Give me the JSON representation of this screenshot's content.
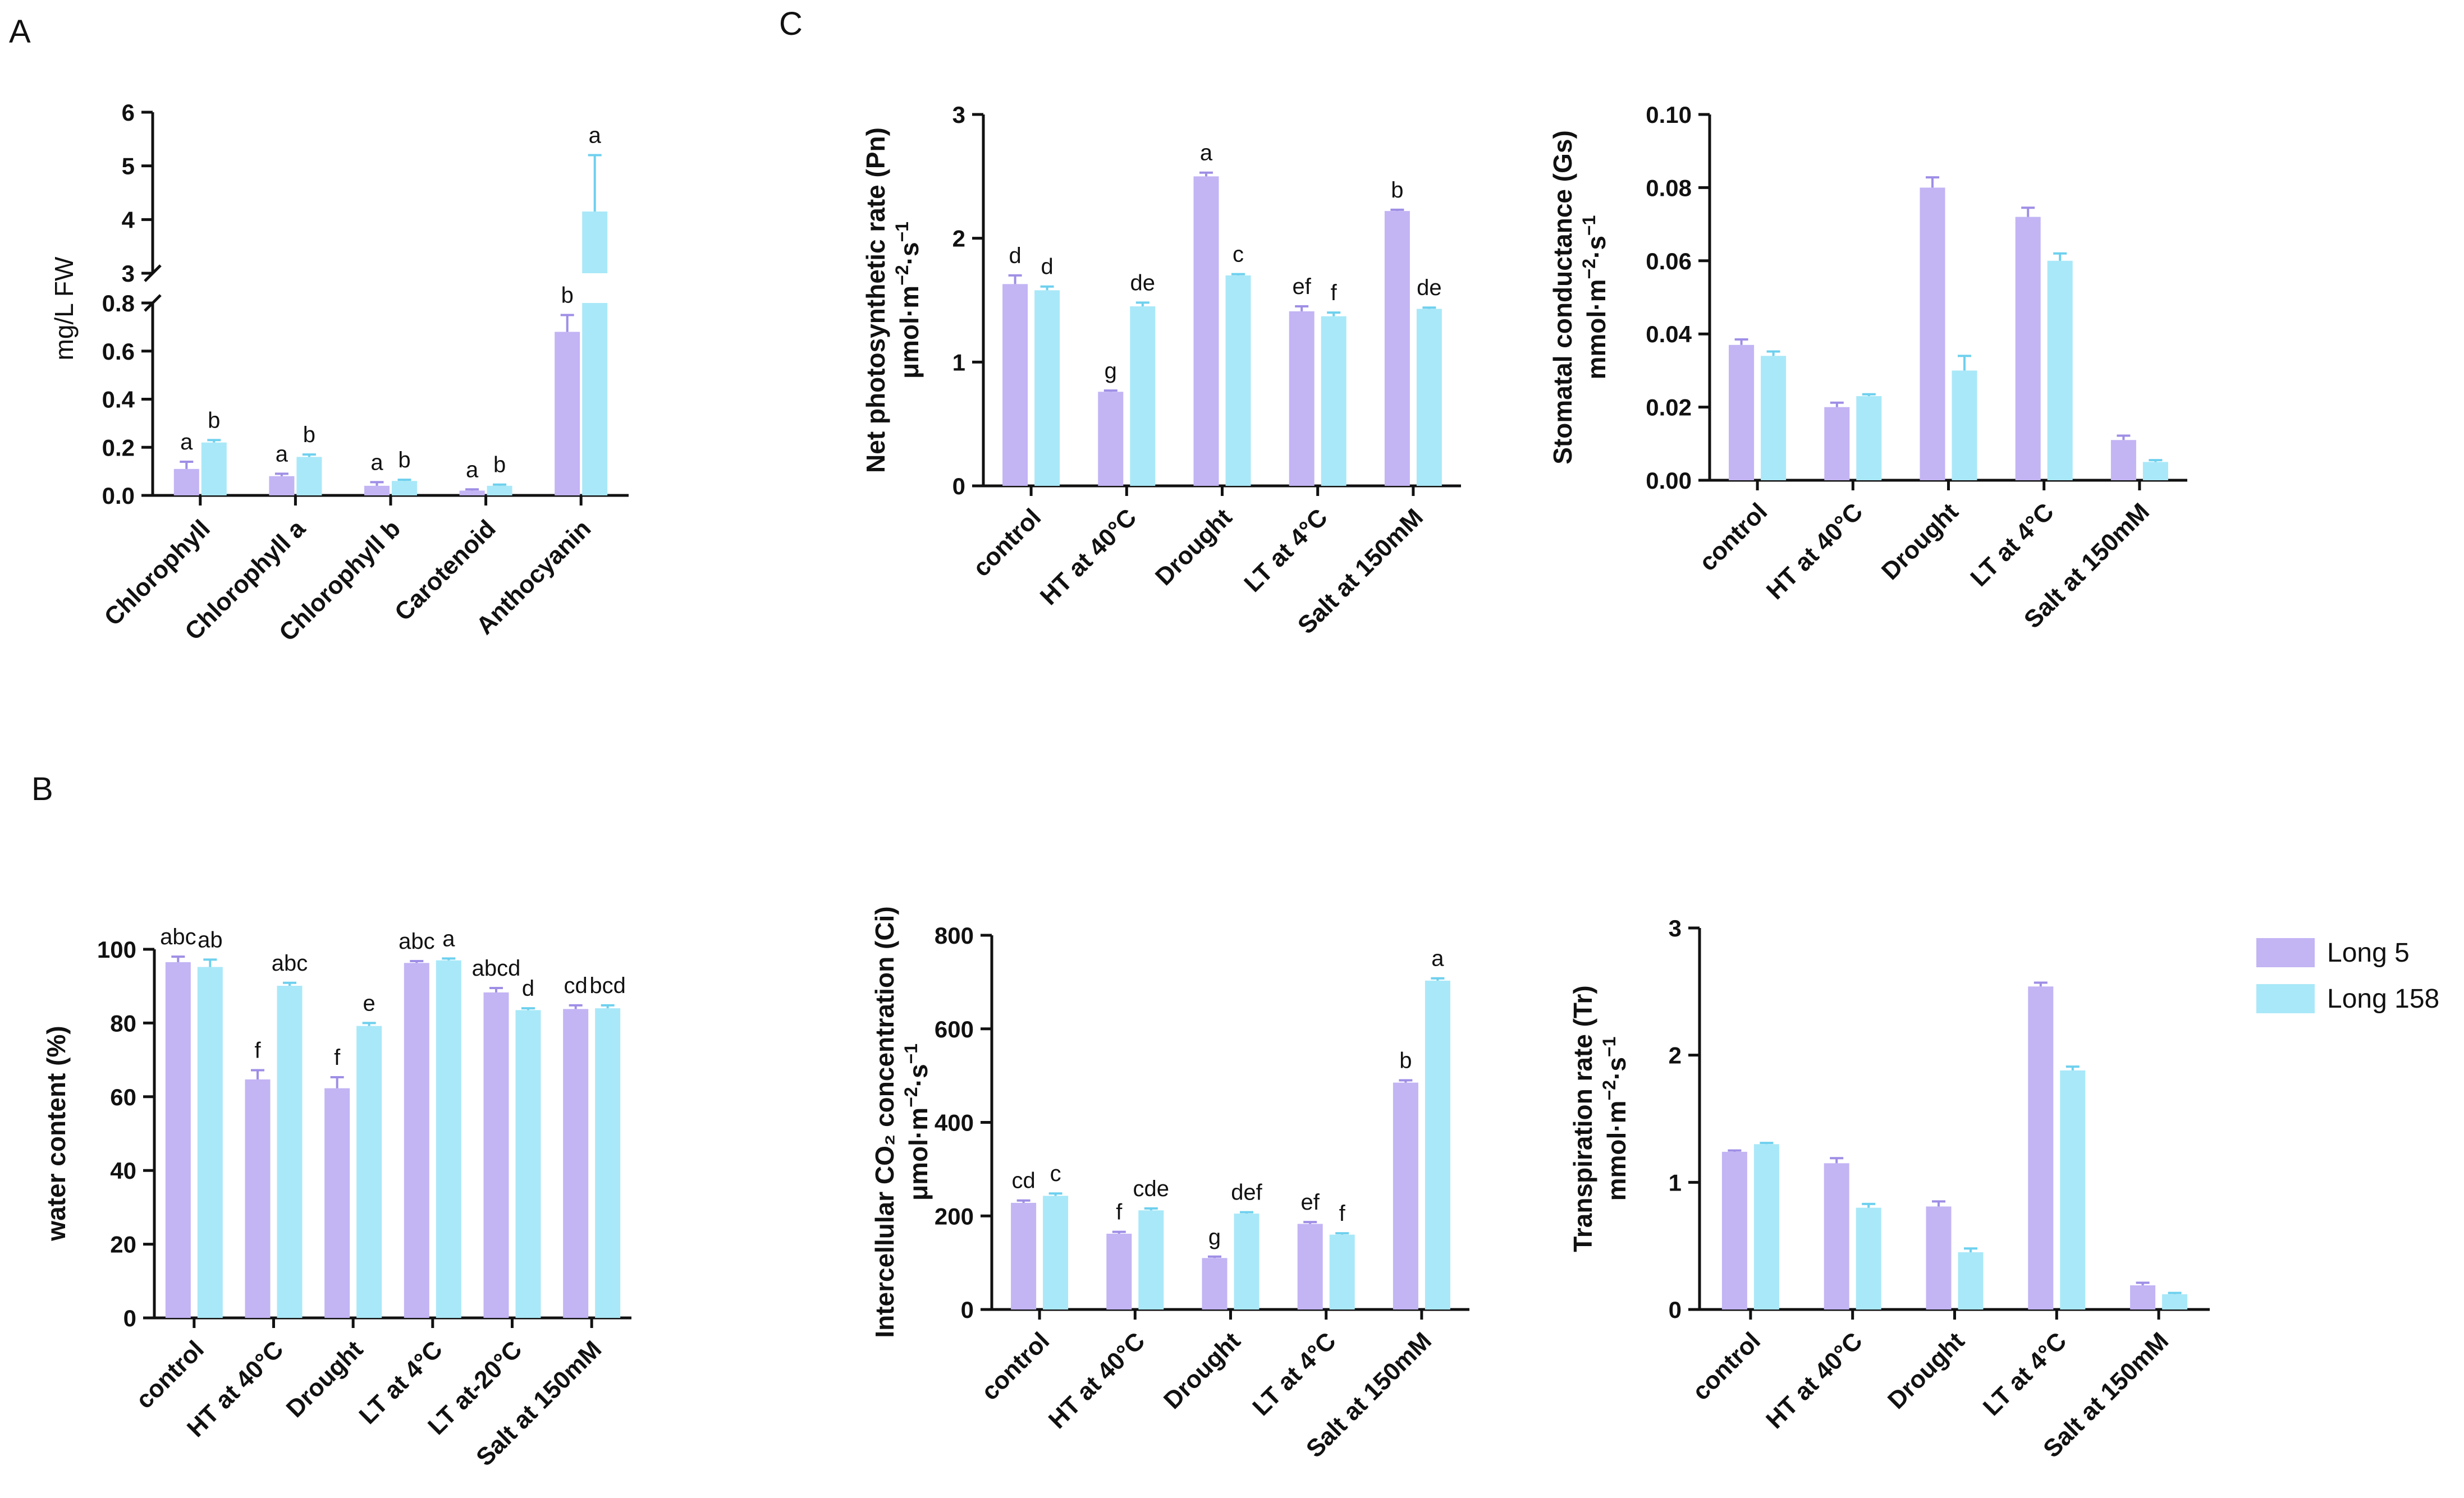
{
  "colors": {
    "long5": "#c3b4f4",
    "long158": "#a9e8f8",
    "long5_err": "#9f8ee6",
    "long158_err": "#6ed0ee",
    "axis": "#111111"
  },
  "panel_labels": {
    "a": "A",
    "b": "B",
    "c": "C"
  },
  "legend": [
    {
      "label": "Long 5",
      "series": 0
    },
    {
      "label": "Long 158",
      "series": 1
    }
  ],
  "chart_data": [
    {
      "id": "A",
      "type": "bar",
      "ylabel": "mg/L FW",
      "ylabel_bold": false,
      "categories": [
        "Chlorophyll",
        "Chlorophyll a",
        "Chlorophyll b",
        "Carotenoid",
        "Anthocyanin"
      ],
      "series": [
        {
          "name": "Long 5",
          "values": [
            0.11,
            0.08,
            0.04,
            0.02,
            0.68
          ],
          "errors": [
            0.03,
            0.01,
            0.015,
            0.005,
            0.07
          ],
          "letters": [
            "a",
            "a",
            "a",
            "a",
            "b"
          ]
        },
        {
          "name": "Long 158",
          "values": [
            0.22,
            0.16,
            0.06,
            0.04,
            4.15
          ],
          "errors": [
            0.01,
            0.01,
            0.005,
            0.005,
            1.05
          ],
          "letters": [
            "b",
            "b",
            "b",
            "b",
            "a"
          ]
        }
      ],
      "broken_axis": {
        "lower": [
          0,
          0.8
        ],
        "upper": [
          3,
          6
        ]
      },
      "yticks_lower": [
        "0.0",
        "0.2",
        "0.4",
        "0.6",
        "0.8"
      ],
      "yticks_upper": [
        "3",
        "4",
        "5",
        "6"
      ]
    },
    {
      "id": "B",
      "type": "bar",
      "ylabel": "water content  (%)",
      "categories": [
        "control",
        "HT at 40°C",
        "Drought",
        "LT at 4°C",
        "LT at-20°C",
        "Salt at 150mM"
      ],
      "ylim": [
        0,
        100
      ],
      "yticks": [
        "0",
        "20",
        "40",
        "60",
        "80",
        "100"
      ],
      "series": [
        {
          "name": "Long 5",
          "values": [
            96.5,
            64.7,
            62.3,
            96.3,
            88.3,
            83.8
          ],
          "errors": [
            1.5,
            2.5,
            3.0,
            0.5,
            1.2,
            1.0
          ],
          "letters": [
            "abc",
            "f",
            "f",
            "abc",
            "abcd",
            "cd"
          ]
        },
        {
          "name": "Long 158",
          "values": [
            95.2,
            90.1,
            79.2,
            97.0,
            83.5,
            84.0
          ],
          "errors": [
            2.0,
            0.8,
            0.8,
            0.5,
            0.5,
            0.8
          ],
          "letters": [
            "ab",
            "abc",
            "e",
            "a",
            "d",
            "bcd"
          ]
        }
      ]
    },
    {
      "id": "Pn",
      "type": "bar",
      "ylabel": "Net photosynthetic rate (Pn)",
      "ylabel_unit": [
        "μmol·m",
        "−2",
        "·s",
        "−1"
      ],
      "categories": [
        "control",
        "HT at 40°C",
        "Drought",
        "LT at 4°C",
        "Salt at 150mM"
      ],
      "ylim": [
        0,
        3
      ],
      "yticks": [
        "0",
        "1",
        "2",
        "3"
      ],
      "series": [
        {
          "name": "Long 5",
          "values": [
            1.63,
            0.76,
            2.5,
            1.41,
            2.22
          ],
          "errors": [
            0.07,
            0.01,
            0.03,
            0.04,
            0.01
          ],
          "letters": [
            "d",
            "g",
            "a",
            "ef",
            "b"
          ]
        },
        {
          "name": "Long 158",
          "values": [
            1.58,
            1.45,
            1.7,
            1.37,
            1.43
          ],
          "errors": [
            0.03,
            0.03,
            0.01,
            0.03,
            0.01
          ],
          "letters": [
            "d",
            "de",
            "c",
            "f",
            "de"
          ]
        }
      ]
    },
    {
      "id": "Gs",
      "type": "bar",
      "ylabel": "Stomatal conductance (Gs)",
      "ylabel_unit": [
        "mmol·m",
        "−2",
        "·s",
        "−1"
      ],
      "categories": [
        "control",
        "HT at 40°C",
        "Drought",
        "LT at 4°C",
        "Salt at 150mM"
      ],
      "ylim": [
        0,
        0.1
      ],
      "yticks": [
        "0.00",
        "0.02",
        "0.04",
        "0.06",
        "0.08",
        "0.10"
      ],
      "series": [
        {
          "name": "Long 5",
          "values": [
            0.037,
            0.02,
            0.08,
            0.072,
            0.011
          ],
          "errors": [
            0.0015,
            0.0012,
            0.0028,
            0.0025,
            0.0012
          ],
          "letters": []
        },
        {
          "name": "Long 158",
          "values": [
            0.034,
            0.023,
            0.03,
            0.06,
            0.005
          ],
          "errors": [
            0.0012,
            0.0005,
            0.004,
            0.002,
            0.0005
          ],
          "letters": []
        }
      ]
    },
    {
      "id": "Ci",
      "type": "bar",
      "ylabel": "Intercellular CO₂ concentration (Ci)",
      "ylabel_unit": [
        "μmol·m",
        "−2",
        "·s",
        "−1"
      ],
      "categories": [
        "control",
        "HT at 40°C",
        "Drought",
        "LT at 4°C",
        "Salt at 150mM"
      ],
      "ylim": [
        0,
        800
      ],
      "yticks": [
        "0",
        "200",
        "400",
        "600",
        "800"
      ],
      "series": [
        {
          "name": "Long 5",
          "values": [
            228,
            162,
            110,
            183,
            485
          ],
          "errors": [
            5,
            4,
            3,
            4,
            5
          ],
          "letters": [
            "cd",
            "f",
            "g",
            "ef",
            "b"
          ]
        },
        {
          "name": "Long 158",
          "values": [
            243,
            212,
            205,
            160,
            703
          ],
          "errors": [
            5,
            4,
            3,
            3,
            5
          ],
          "letters": [
            "c",
            "cde",
            "def",
            "f",
            "a"
          ]
        }
      ]
    },
    {
      "id": "Tr",
      "type": "bar",
      "ylabel": "Transpiration rate (Tr)",
      "ylabel_unit": [
        "mmol·m",
        "−2",
        "·s",
        "−1"
      ],
      "categories": [
        "control",
        "HT at 40°C",
        "Drought",
        "LT at 4°C",
        "Salt at 150mM"
      ],
      "ylim": [
        0,
        3
      ],
      "yticks": [
        "0",
        "1",
        "2",
        "3"
      ],
      "series": [
        {
          "name": "Long 5",
          "values": [
            1.24,
            1.15,
            0.81,
            2.54,
            0.19
          ],
          "errors": [
            0.01,
            0.04,
            0.04,
            0.03,
            0.02
          ],
          "letters": []
        },
        {
          "name": "Long 158",
          "values": [
            1.3,
            0.8,
            0.45,
            1.88,
            0.12
          ],
          "errors": [
            0.01,
            0.03,
            0.03,
            0.03,
            0.01
          ],
          "letters": []
        }
      ]
    }
  ]
}
